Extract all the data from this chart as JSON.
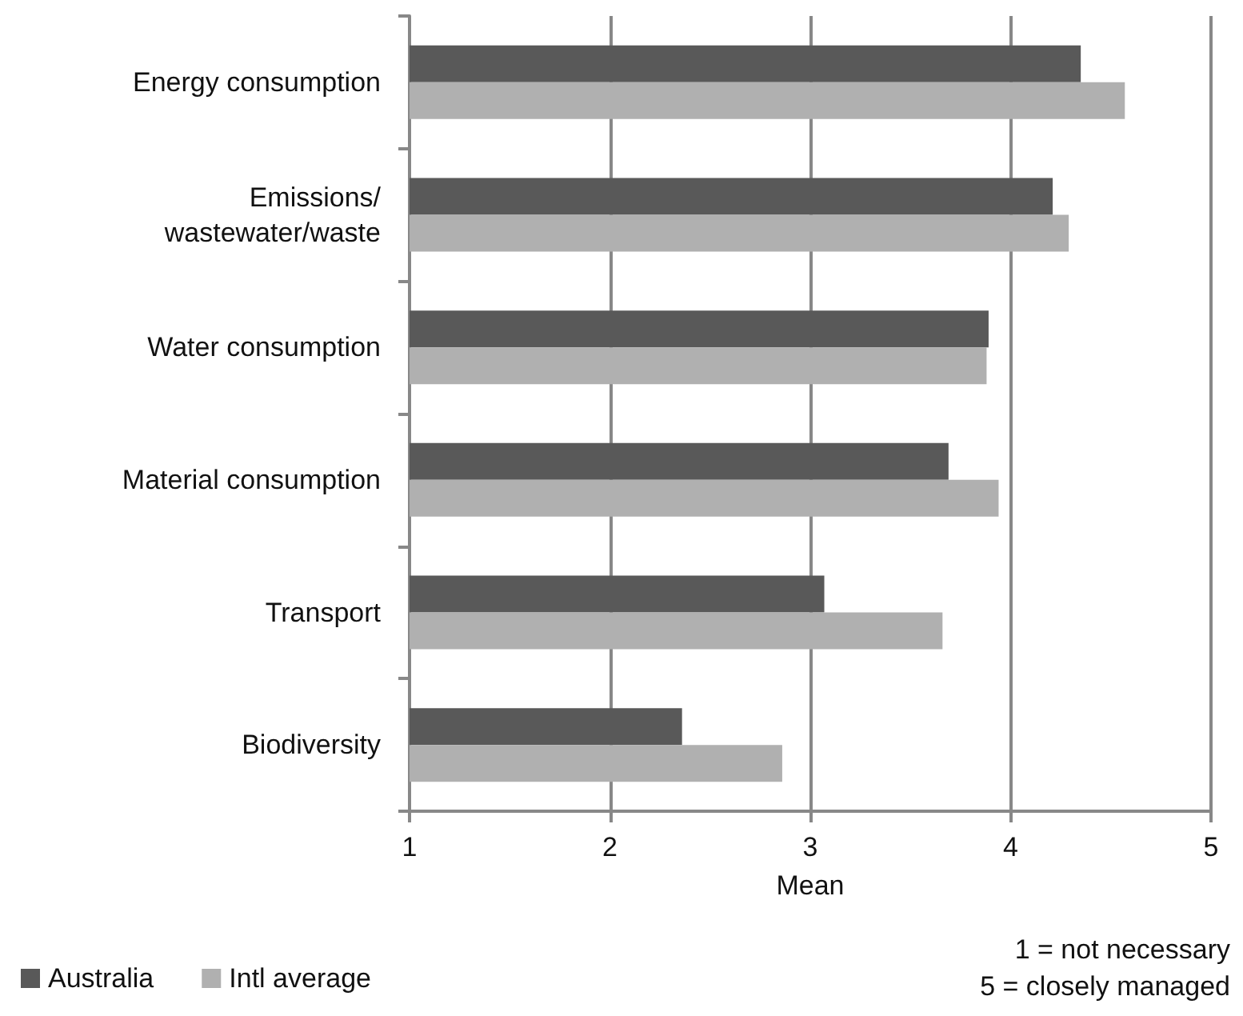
{
  "chart_data": {
    "type": "bar",
    "orientation": "horizontal",
    "categories": [
      "Energy consumption",
      "Emissions/\nwastewater/waste",
      "Water consumption",
      "Material consumption",
      "Transport",
      "Biodiversity"
    ],
    "series": [
      {
        "name": "Australia",
        "color": "#595959",
        "values": [
          4.35,
          4.21,
          3.89,
          3.69,
          3.07,
          2.36
        ]
      },
      {
        "name": "Intl average",
        "color": "#b0b0b0",
        "values": [
          4.57,
          4.29,
          3.88,
          3.94,
          3.66,
          2.86
        ]
      }
    ],
    "xlabel": "Mean",
    "xlim": [
      1,
      5
    ],
    "xticks": [
      1,
      2,
      3,
      4,
      5
    ],
    "grid": "x",
    "legend": "bottom left",
    "annotations": [
      "1 = not necessary",
      "5 = closely managed"
    ]
  }
}
